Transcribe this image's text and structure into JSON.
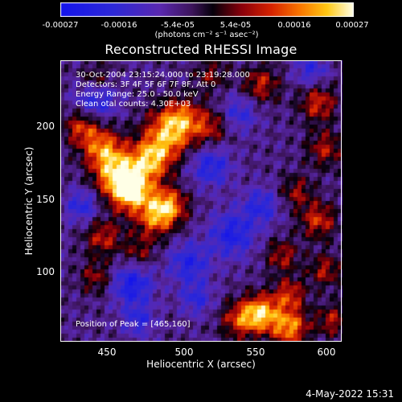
{
  "colorbar": {
    "tick_labels": [
      "-0.00027",
      "-0.00016",
      "-5.4e-05",
      "5.4e-05",
      "0.00016",
      "0.00027"
    ],
    "units": "(photons cm⁻² s⁻¹ asec⁻²)",
    "range": [
      -0.00027,
      0.00027
    ]
  },
  "chart_data": {
    "type": "heatmap",
    "title": "Reconstructed RHESSI Image",
    "xlabel": "Heliocentric X (arcsec)",
    "ylabel": "Heliocentric Y (arcsec)",
    "xlim": [
      415,
      612
    ],
    "ylim": [
      55,
      252
    ],
    "xticks": [
      "450",
      "500",
      "550",
      "600"
    ],
    "yticks": [
      "200",
      "150",
      "100"
    ],
    "peak_position": [
      465,
      160
    ],
    "colormap": "blue-purple-red-orange-yellow-white (RHESSI color table)",
    "grid": false
  },
  "info": {
    "time_range": "30-Oct-2004 23:15:24.000 to 23:19:28.000",
    "detectors": "Detectors: 3F 4F 5F 6F 7F 8F, Att 0",
    "energy_range": "Energy Range: 25.0 - 50.0 keV",
    "clean_counts": "Clean       otal counts: 4.30E+03",
    "peak_position": "Position of Peak = [465,160]"
  },
  "footer": {
    "date": "4-May-2022 15:31"
  }
}
